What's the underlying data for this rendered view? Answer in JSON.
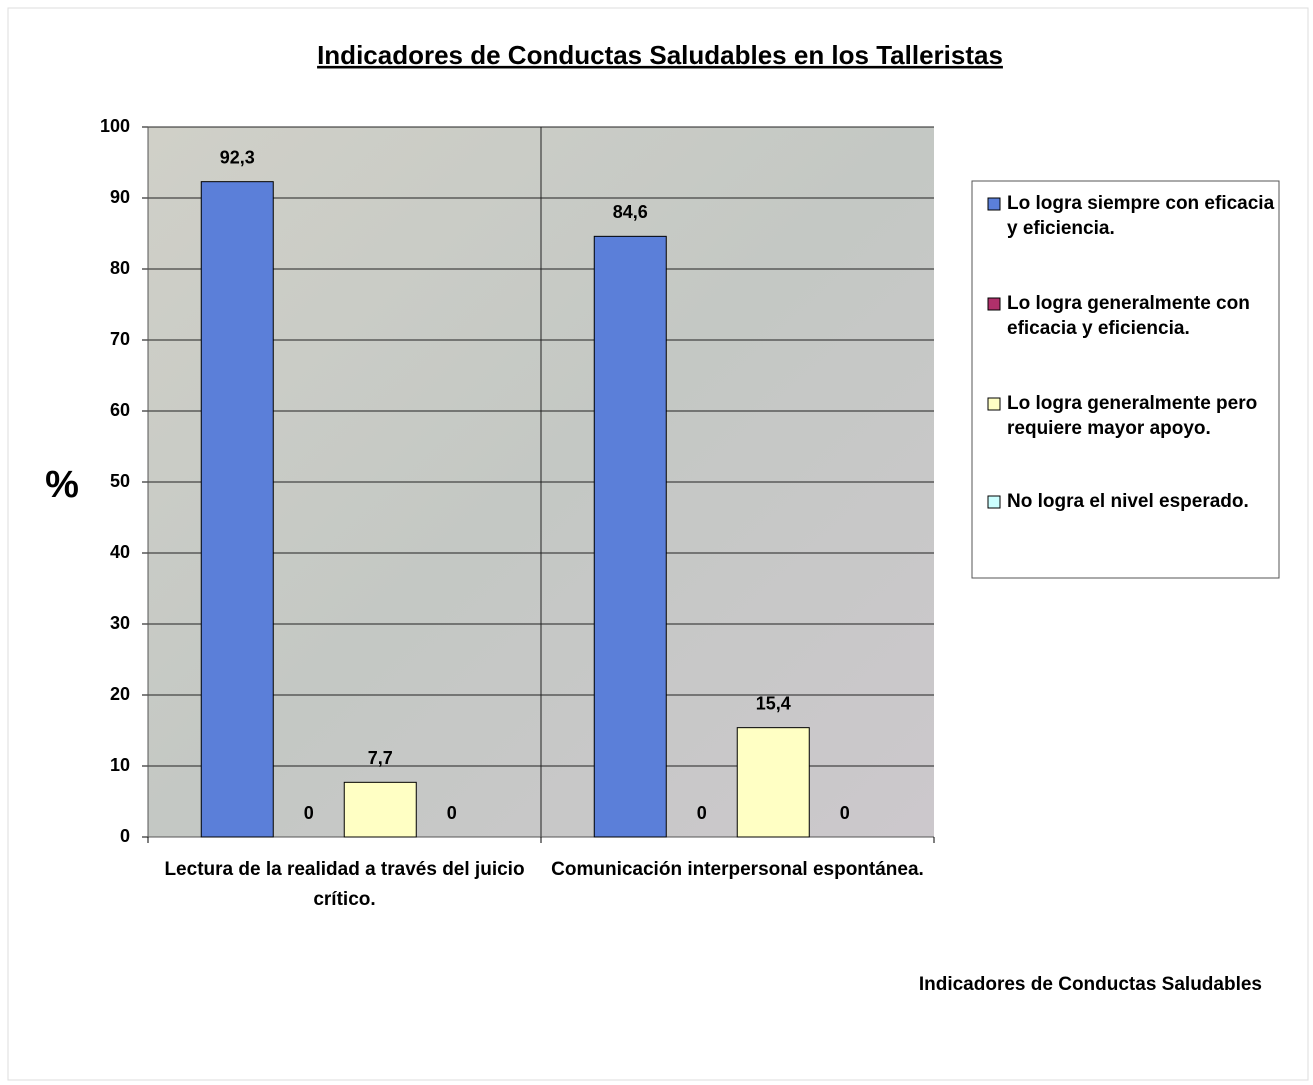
{
  "chart_data": {
    "type": "bar",
    "title": "Indicadores de Conductas Saludables en los Talleristas",
    "y_label": "%",
    "x_label": "Indicadores de Conductas Saludables",
    "categories": [
      "Lectura de la realidad a través del juicio crítico.",
      "Comunicación interpersonal espontánea."
    ],
    "series": [
      {
        "name": "Lo logra siempre con eficacia y eficiencia.",
        "color": "#5b7fd9",
        "values": [
          92.3,
          84.6
        ],
        "value_labels": [
          "92,3",
          "84,6"
        ]
      },
      {
        "name": "Lo logra generalmente con eficacia y eficiencia.",
        "color": "#b0306a",
        "values": [
          0,
          0
        ],
        "value_labels": [
          "0",
          "0"
        ]
      },
      {
        "name": "Lo logra generalmente pero requiere mayor apoyo.",
        "color": "#ffffc4",
        "values": [
          7.7,
          15.4
        ],
        "value_labels": [
          "7,7",
          "15,4"
        ]
      },
      {
        "name": "No logra el nivel esperado.",
        "color": "#ccffff",
        "values": [
          0,
          0
        ],
        "value_labels": [
          "0",
          "0"
        ]
      }
    ],
    "ylim": [
      0,
      100
    ],
    "yticks": [
      0,
      10,
      20,
      30,
      40,
      50,
      60,
      70,
      80,
      90,
      100
    ],
    "grid": true,
    "legend": "right"
  }
}
